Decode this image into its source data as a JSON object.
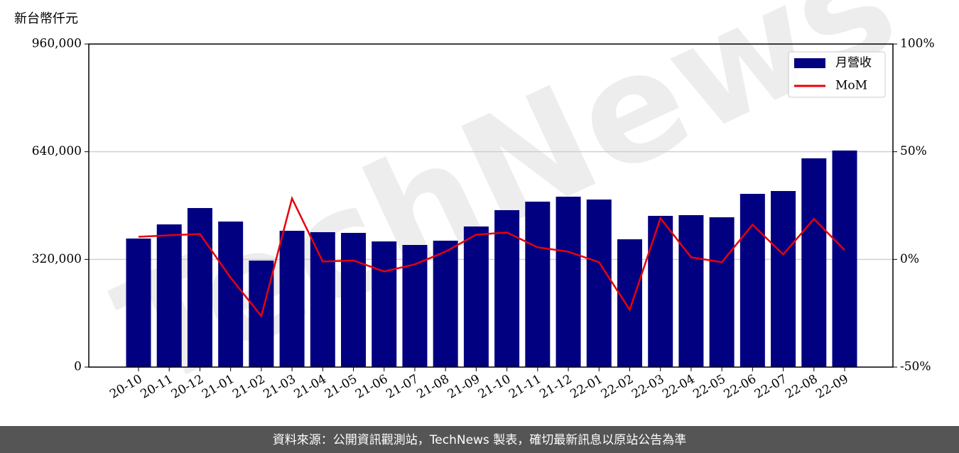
{
  "chart_data": {
    "type": "bar_line",
    "y_label": "新台幣仟元",
    "watermark": "TechNews",
    "footer": "資料來源：公開資訊觀測站，TechNews 製表，確切最新訊息以原站公告為準",
    "categories": [
      "20-10",
      "20-11",
      "20-12",
      "21-01",
      "21-02",
      "21-03",
      "21-04",
      "21-05",
      "21-06",
      "21-07",
      "21-08",
      "21-09",
      "21-10",
      "21-11",
      "21-12",
      "22-01",
      "22-02",
      "22-03",
      "22-04",
      "22-05",
      "22-06",
      "22-07",
      "22-08",
      "22-09"
    ],
    "series": [
      {
        "name": "月營收",
        "type": "bar",
        "color": "#000080",
        "values": [
          382000,
          424000,
          472600,
          432500,
          316500,
          405000,
          400900,
          398800,
          373400,
          362900,
          375600,
          417800,
          466300,
          491600,
          506400,
          497900,
          379800,
          449400,
          451500,
          445200,
          514800,
          523200,
          620300,
          643500
        ]
      },
      {
        "name": "MoM",
        "type": "line",
        "axis": "y2",
        "color": "#e8000b",
        "values": [
          10.5,
          11.2,
          11.8,
          -8.5,
          -26.3,
          28.3,
          -1.0,
          -0.5,
          -5.6,
          -2.3,
          3.6,
          11.5,
          12.5,
          5.6,
          3.6,
          -1.3,
          -23.4,
          19.1,
          1.0,
          -1.3,
          16.1,
          2.3,
          18.8,
          4.3
        ]
      }
    ],
    "ylim": [
      0,
      960000
    ],
    "yticks": [
      0,
      {
        "value": 320000,
        "label": "320,000"
      },
      {
        "value": 640000,
        "label": "640,000"
      },
      {
        "value": 960000,
        "label": "960,000"
      }
    ],
    "y2lim": [
      -50,
      100
    ],
    "y2ticks": [
      {
        "value": -50,
        "label": "-50%"
      },
      {
        "value": 0,
        "label": "0%"
      },
      {
        "value": 50,
        "label": "50%"
      },
      {
        "value": 100,
        "label": "100%"
      }
    ],
    "grid": true,
    "legend": "upper right"
  }
}
